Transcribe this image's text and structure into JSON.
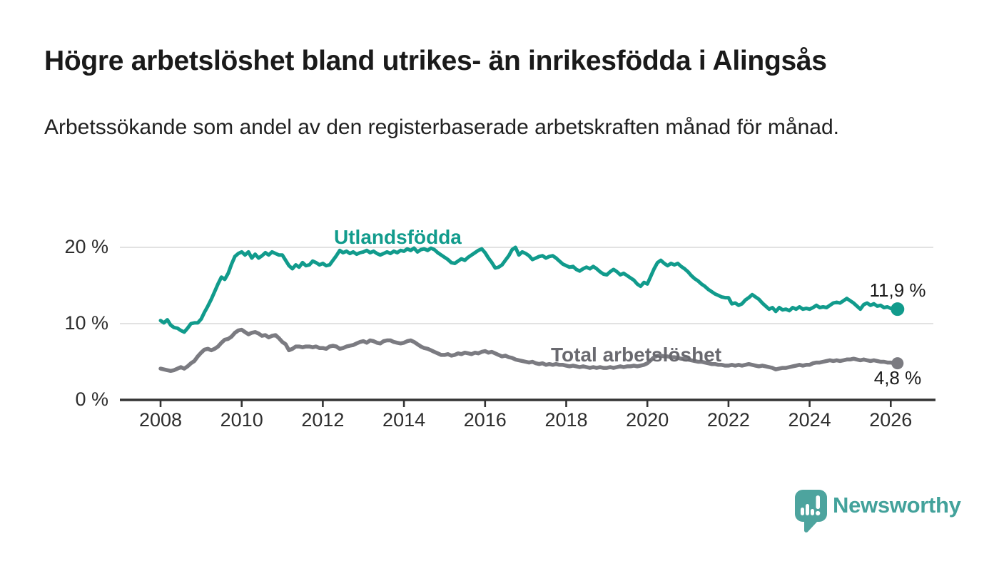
{
  "title": "Högre arbetslöshet bland utrikes- än inrikesfödda i Alingsås",
  "subtitle": "Arbetssökande som andel av den registerbaserade arbetskraften månad för månad.",
  "branding": {
    "logo_text": "Newsworthy",
    "logo_icon": "newsworthy-speech-bubble-bar-chart-icon",
    "logo_color": "#4da49e"
  },
  "colors": {
    "background": "#ffffff",
    "title_text": "#1a1a1a",
    "axis_text": "#2e2e2e",
    "gridline": "#d8d8d8",
    "axis_line": "#333333",
    "series_foreign_born": "#119b8c",
    "series_total": "#7b7b81",
    "series_total_label": "#69696f"
  },
  "chart_data": {
    "type": "line",
    "unit": "%",
    "grid": "horizontal-only",
    "x_axis": {
      "tick_years": [
        2008,
        2010,
        2012,
        2014,
        2016,
        2018,
        2020,
        2022,
        2024,
        2026
      ],
      "tick_labels": [
        "2008",
        "2010",
        "2012",
        "2014",
        "2016",
        "2018",
        "2020",
        "2022",
        "2024",
        "2026"
      ],
      "range": [
        2007,
        2027.2
      ]
    },
    "y_axis": {
      "tick_values": [
        0,
        10,
        20
      ],
      "tick_labels": [
        "0 %",
        "10 %",
        "20 %"
      ],
      "range": [
        0,
        21
      ]
    },
    "series": [
      {
        "name": "Utlandsfödda",
        "color": "#119b8c",
        "start_year": 2008,
        "interval_months": 1,
        "end_value": 11.9,
        "end_label": "11,9 %",
        "values": [
          10.4,
          10.1,
          10.5,
          9.8,
          9.5,
          9.4,
          9.1,
          8.9,
          9.4,
          10.0,
          10.1,
          10.1,
          10.6,
          11.5,
          12.3,
          13.2,
          14.2,
          15.2,
          16.1,
          15.8,
          16.6,
          17.8,
          18.8,
          19.2,
          19.4,
          19.0,
          19.4,
          18.6,
          19.1,
          18.6,
          18.9,
          19.3,
          19.0,
          19.4,
          19.2,
          19.0,
          19.0,
          18.3,
          17.6,
          17.2,
          17.7,
          17.4,
          18.0,
          17.6,
          17.7,
          18.2,
          18.0,
          17.7,
          17.9,
          17.6,
          17.7,
          18.3,
          18.9,
          19.6,
          19.3,
          19.5,
          19.2,
          19.4,
          19.1,
          19.3,
          19.4,
          19.6,
          19.3,
          19.5,
          19.2,
          19.0,
          19.2,
          19.4,
          19.2,
          19.5,
          19.3,
          19.6,
          19.5,
          19.8,
          19.6,
          19.9,
          19.4,
          19.7,
          19.8,
          19.6,
          19.9,
          19.7,
          19.3,
          19.0,
          18.7,
          18.4,
          18.0,
          17.9,
          18.2,
          18.5,
          18.3,
          18.7,
          19.0,
          19.3,
          19.6,
          19.8,
          19.3,
          18.6,
          18.0,
          17.3,
          17.4,
          17.7,
          18.3,
          18.9,
          19.7,
          20.0,
          19.0,
          19.4,
          19.2,
          18.9,
          18.4,
          18.6,
          18.8,
          18.9,
          18.6,
          18.8,
          18.9,
          18.6,
          18.2,
          17.8,
          17.6,
          17.4,
          17.5,
          17.1,
          16.9,
          17.2,
          17.4,
          17.2,
          17.5,
          17.2,
          16.8,
          16.5,
          16.4,
          16.8,
          17.1,
          16.8,
          16.4,
          16.6,
          16.3,
          16.0,
          15.7,
          15.2,
          14.9,
          15.4,
          15.2,
          16.2,
          17.2,
          18.0,
          18.3,
          17.9,
          17.6,
          17.9,
          17.7,
          17.9,
          17.5,
          17.2,
          16.8,
          16.3,
          15.9,
          15.6,
          15.2,
          14.9,
          14.5,
          14.2,
          13.9,
          13.7,
          13.5,
          13.4,
          13.4,
          12.6,
          12.7,
          12.4,
          12.6,
          13.1,
          13.4,
          13.8,
          13.5,
          13.2,
          12.7,
          12.3,
          11.9,
          12.1,
          11.6,
          12.1,
          11.8,
          11.9,
          11.7,
          12.1,
          11.9,
          12.2,
          11.9,
          12.0,
          11.9,
          12.1,
          12.4,
          12.1,
          12.2,
          12.1,
          12.4,
          12.7,
          12.8,
          12.7,
          13.0,
          13.3,
          13.0,
          12.7,
          12.3,
          11.9,
          12.5,
          12.7,
          12.4,
          12.6,
          12.3,
          12.4,
          12.1,
          12.2,
          12.0,
          11.9,
          11.9
        ]
      },
      {
        "name": "Total arbetslöshet",
        "color": "#7b7b81",
        "start_year": 2008,
        "interval_months": 1,
        "end_value": 4.8,
        "end_label": "4,8 %",
        "values": [
          4.1,
          4.0,
          3.9,
          3.8,
          3.9,
          4.1,
          4.3,
          4.1,
          4.4,
          4.8,
          5.1,
          5.7,
          6.2,
          6.6,
          6.7,
          6.5,
          6.7,
          7.0,
          7.5,
          7.9,
          8.0,
          8.3,
          8.8,
          9.1,
          9.2,
          8.9,
          8.6,
          8.8,
          8.9,
          8.7,
          8.4,
          8.5,
          8.2,
          8.4,
          8.5,
          8.1,
          7.6,
          7.3,
          6.5,
          6.7,
          7.0,
          7.0,
          6.9,
          7.0,
          7.0,
          6.9,
          7.0,
          6.8,
          6.8,
          6.7,
          7.0,
          7.1,
          7.0,
          6.7,
          6.8,
          7.0,
          7.1,
          7.2,
          7.4,
          7.6,
          7.7,
          7.5,
          7.8,
          7.7,
          7.5,
          7.4,
          7.7,
          7.8,
          7.8,
          7.6,
          7.5,
          7.4,
          7.5,
          7.7,
          7.8,
          7.6,
          7.3,
          7.0,
          6.8,
          6.7,
          6.5,
          6.3,
          6.1,
          5.9,
          5.9,
          6.0,
          5.8,
          5.9,
          6.1,
          6.0,
          6.2,
          6.1,
          6.0,
          6.2,
          6.1,
          6.3,
          6.4,
          6.2,
          6.3,
          6.1,
          5.9,
          5.7,
          5.8,
          5.6,
          5.5,
          5.3,
          5.2,
          5.1,
          5.0,
          4.9,
          5.0,
          4.8,
          4.7,
          4.8,
          4.6,
          4.7,
          4.6,
          4.7,
          4.6,
          4.6,
          4.5,
          4.4,
          4.5,
          4.4,
          4.3,
          4.4,
          4.3,
          4.2,
          4.3,
          4.2,
          4.3,
          4.2,
          4.2,
          4.3,
          4.2,
          4.3,
          4.4,
          4.3,
          4.4,
          4.4,
          4.5,
          4.4,
          4.5,
          4.6,
          4.8,
          5.2,
          5.6,
          5.8,
          5.8,
          5.7,
          5.7,
          5.6,
          5.6,
          5.5,
          5.4,
          5.4,
          5.3,
          5.2,
          5.1,
          5.0,
          5.0,
          4.9,
          4.8,
          4.7,
          4.7,
          4.6,
          4.6,
          4.5,
          4.5,
          4.6,
          4.5,
          4.6,
          4.5,
          4.6,
          4.7,
          4.6,
          4.5,
          4.4,
          4.5,
          4.4,
          4.3,
          4.2,
          4.0,
          4.1,
          4.2,
          4.2,
          4.3,
          4.4,
          4.5,
          4.6,
          4.5,
          4.6,
          4.6,
          4.8,
          4.9,
          4.9,
          5.0,
          5.1,
          5.2,
          5.1,
          5.2,
          5.1,
          5.2,
          5.3,
          5.3,
          5.4,
          5.3,
          5.2,
          5.3,
          5.2,
          5.1,
          5.2,
          5.1,
          5.0,
          5.0,
          4.9,
          4.9,
          4.8,
          4.8
        ]
      }
    ]
  }
}
